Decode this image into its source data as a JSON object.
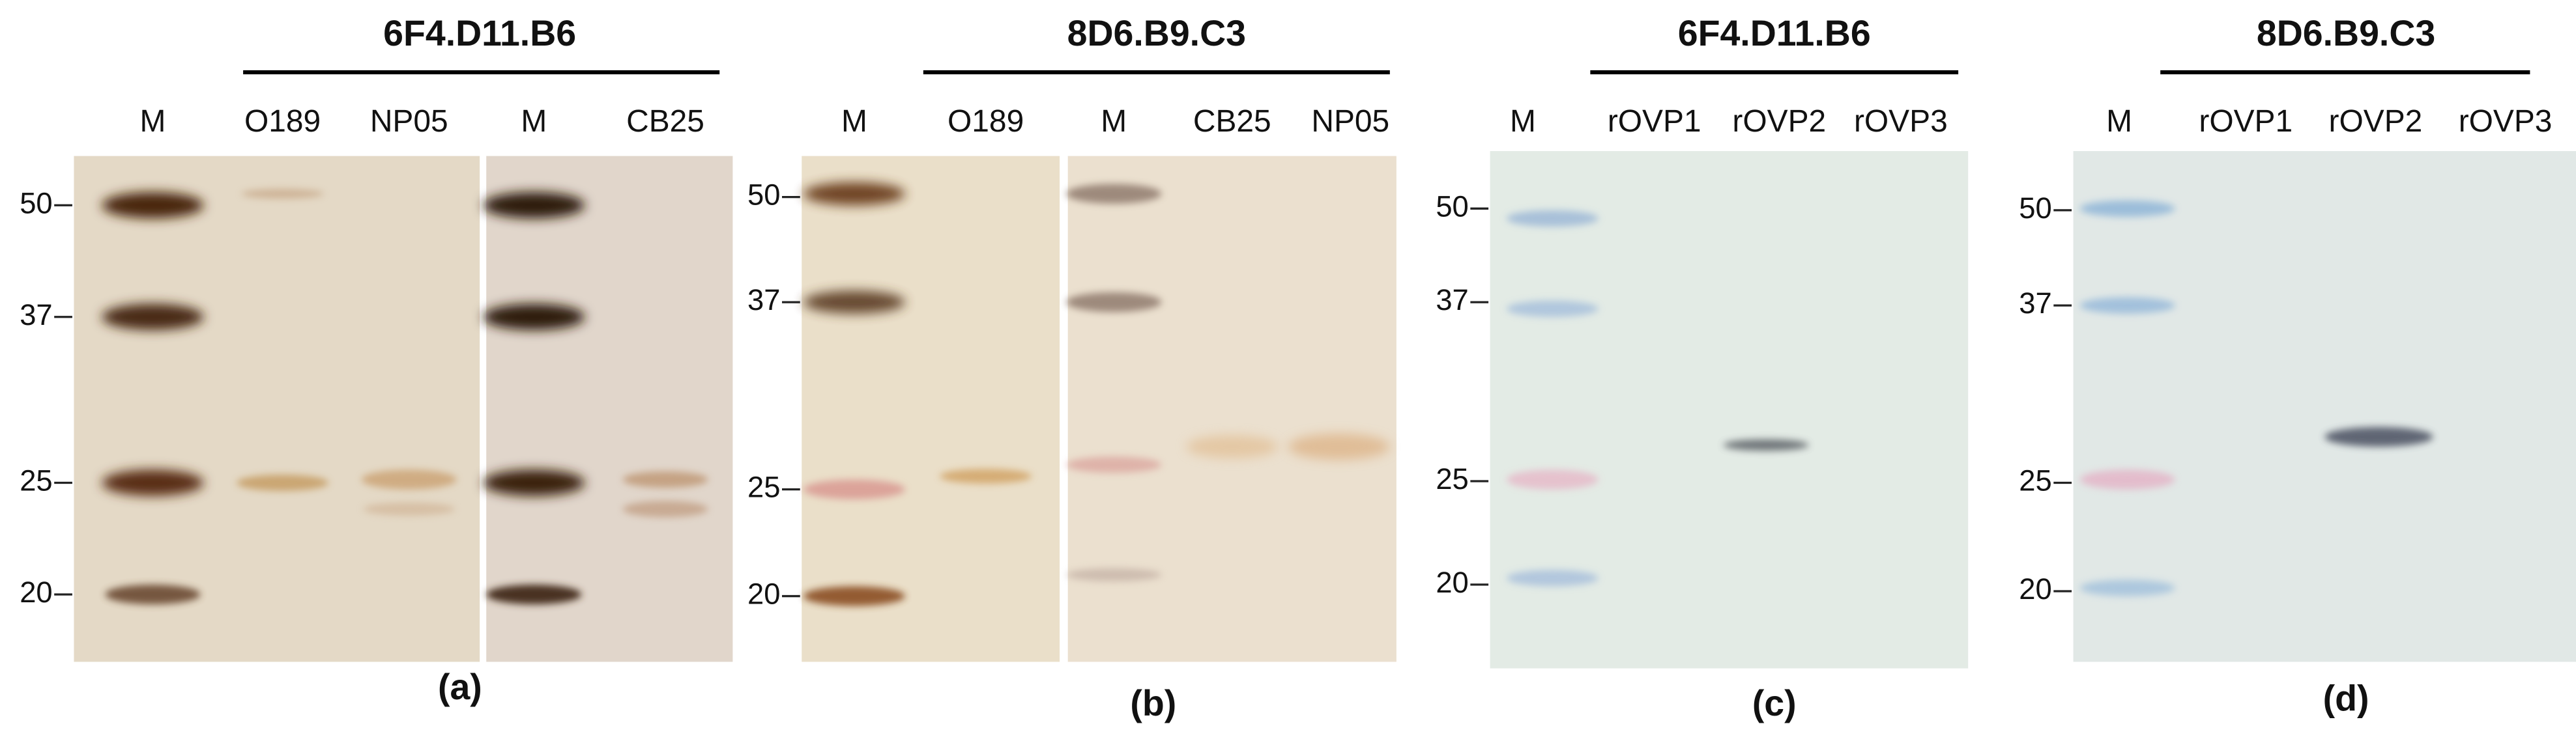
{
  "panels": [
    {
      "title": "6F4.D11.B6",
      "lanes": [
        "M",
        "O189",
        "NP05",
        "M",
        "CB25"
      ],
      "markers": [
        "50",
        "37",
        "25",
        "20"
      ],
      "label": "(a)"
    },
    {
      "title": "8D6.B9.C3",
      "lanes": [
        "M",
        "O189",
        "M",
        "CB25",
        "NP05"
      ],
      "markers": [
        "50",
        "37",
        "25",
        "20"
      ],
      "label": "(b)"
    },
    {
      "title": "6F4.D11.B6",
      "lanes": [
        "M",
        "rOVP1",
        "rOVP2",
        "rOVP3"
      ],
      "markers": [
        "50",
        "37",
        "25",
        "20"
      ],
      "label": "(c)"
    },
    {
      "title": "8D6.B9.C3",
      "lanes": [
        "M",
        "rOVP1",
        "rOVP2",
        "rOVP3"
      ],
      "markers": [
        "50",
        "37",
        "25",
        "20"
      ],
      "label": "(d)"
    }
  ]
}
